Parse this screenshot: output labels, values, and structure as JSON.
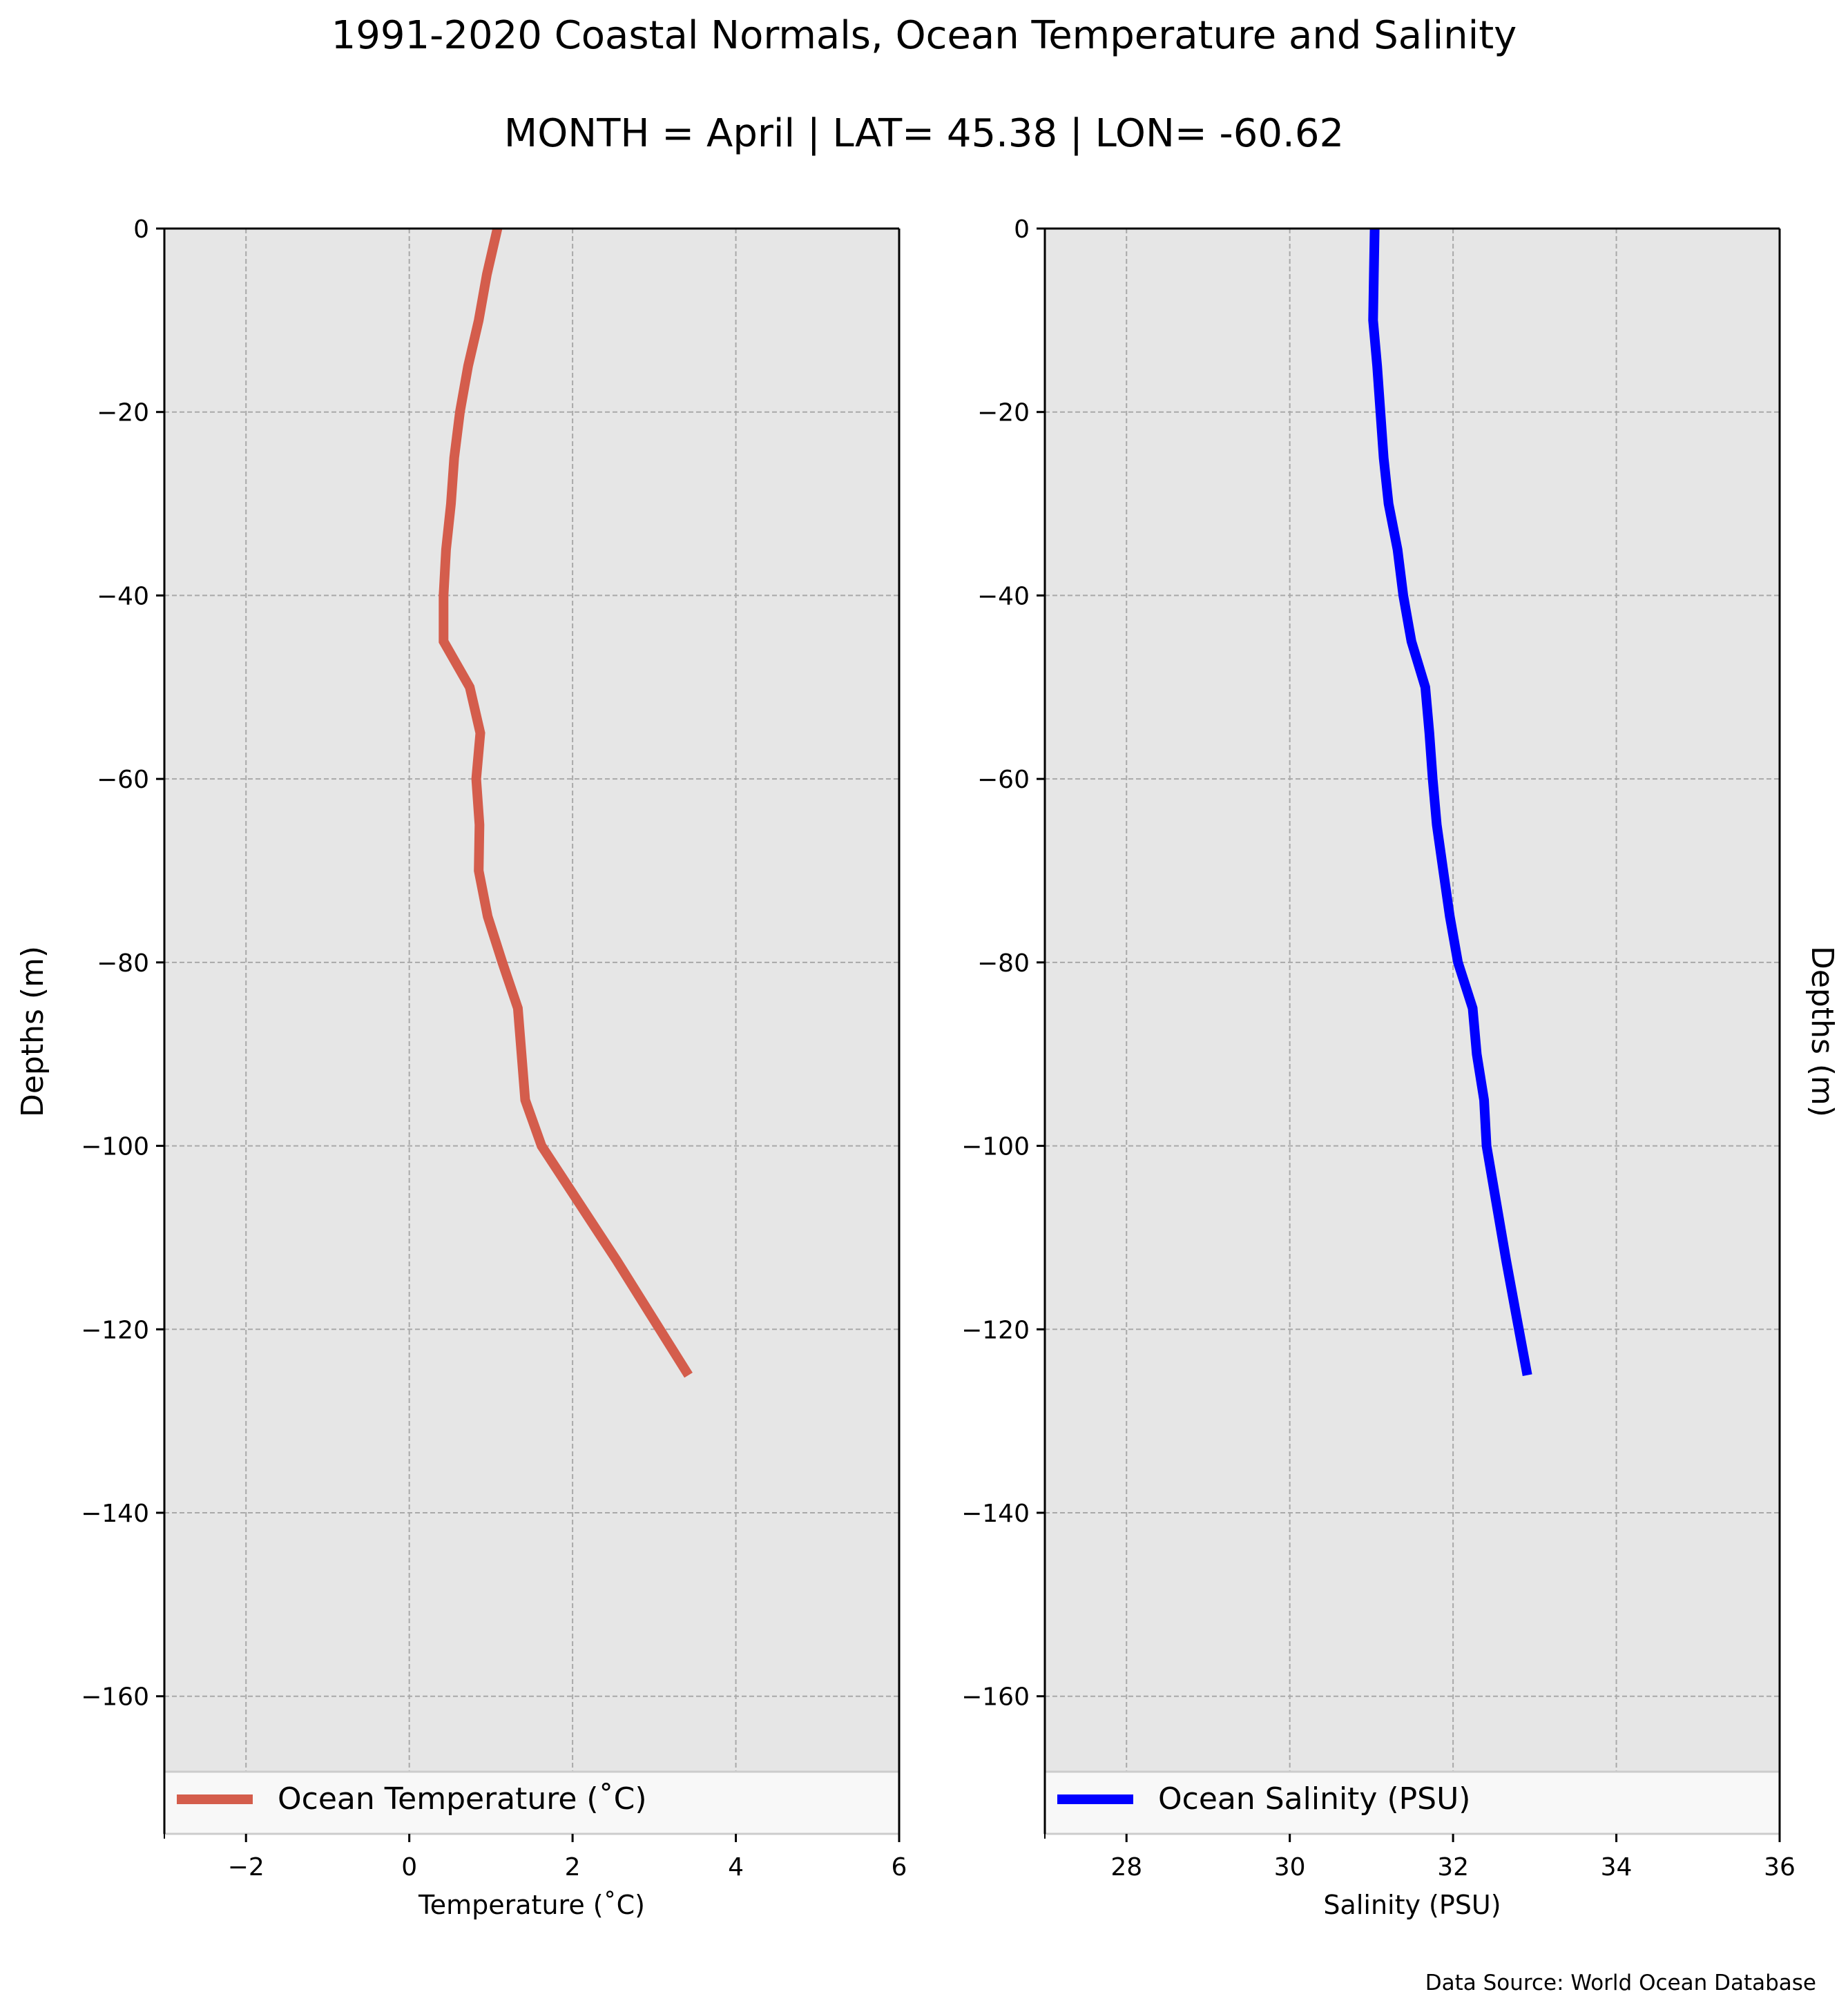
{
  "figure": {
    "title": "1991-2020 Coastal Normals, Ocean Temperature and Salinity",
    "subtitle": "MONTH = April | LAT= 45.38 | LON= -60.62",
    "source": "Data Source: World Ocean Database"
  },
  "chart_data": [
    {
      "type": "line",
      "xlabel": "Temperature (˚C)",
      "ylabel": "Depths (m)",
      "ylabel_side": "left",
      "xlim": [
        -3,
        6
      ],
      "ylim": [
        -175,
        0
      ],
      "xticks": [
        -2,
        0,
        2,
        4,
        6
      ],
      "xtick_labels": [
        "−2",
        "0",
        "2",
        "4",
        "6"
      ],
      "yticks": [
        0,
        -20,
        -40,
        -60,
        -80,
        -100,
        -120,
        -140,
        -160
      ],
      "ytick_labels": [
        "0",
        "−20",
        "−40",
        "−60",
        "−80",
        "−100",
        "−120",
        "−140",
        "−160"
      ],
      "grid": true,
      "legend_position": "bottom",
      "background": "#e6e6e6",
      "series": [
        {
          "name": "Ocean Temperature (˚C)",
          "color": "#d45d4c",
          "x": [
            1.08,
            0.95,
            0.85,
            0.72,
            0.62,
            0.55,
            0.51,
            0.45,
            0.42,
            0.42,
            0.74,
            0.87,
            0.82,
            0.86,
            0.85,
            0.96,
            1.14,
            1.33,
            1.42,
            1.62,
            2.08,
            2.54,
            2.98,
            3.42
          ],
          "y": [
            0,
            -5,
            -10,
            -15,
            -20,
            -25,
            -30,
            -35,
            -40,
            -45,
            -50,
            -55,
            -60,
            -65,
            -70,
            -75,
            -80,
            -85,
            -95,
            -100,
            -106.25,
            -112.5,
            -118.75,
            -125
          ]
        }
      ]
    },
    {
      "type": "line",
      "xlabel": "Salinity (PSU)",
      "ylabel": "Depths (m)",
      "ylabel_side": "right",
      "xlim": [
        27,
        36
      ],
      "ylim": [
        -175,
        0
      ],
      "xticks": [
        28,
        30,
        32,
        34,
        36
      ],
      "xtick_labels": [
        "28",
        "30",
        "32",
        "34",
        "36"
      ],
      "yticks": [
        0,
        -20,
        -40,
        -60,
        -80,
        -100,
        -120,
        -140,
        -160
      ],
      "ytick_labels": [
        "0",
        "−20",
        "−40",
        "−60",
        "−80",
        "−100",
        "−120",
        "−140",
        "−160"
      ],
      "grid": true,
      "legend_position": "bottom",
      "background": "#e6e6e6",
      "series": [
        {
          "name": "Ocean Salinity (PSU)",
          "color": "#0000ff",
          "x": [
            31.04,
            31.03,
            31.02,
            31.07,
            31.11,
            31.15,
            31.21,
            31.32,
            31.39,
            31.49,
            31.66,
            31.71,
            31.75,
            31.8,
            31.88,
            31.96,
            32.06,
            32.24,
            32.29,
            32.38,
            32.41,
            32.53,
            32.65,
            32.78,
            32.91
          ],
          "y": [
            0,
            -5,
            -10,
            -15,
            -20,
            -25,
            -30,
            -35,
            -40,
            -45,
            -50,
            -55,
            -60,
            -65,
            -70,
            -75,
            -80,
            -85,
            -90,
            -95,
            -100,
            -106.25,
            -112.5,
            -118.75,
            -125
          ]
        }
      ]
    }
  ]
}
